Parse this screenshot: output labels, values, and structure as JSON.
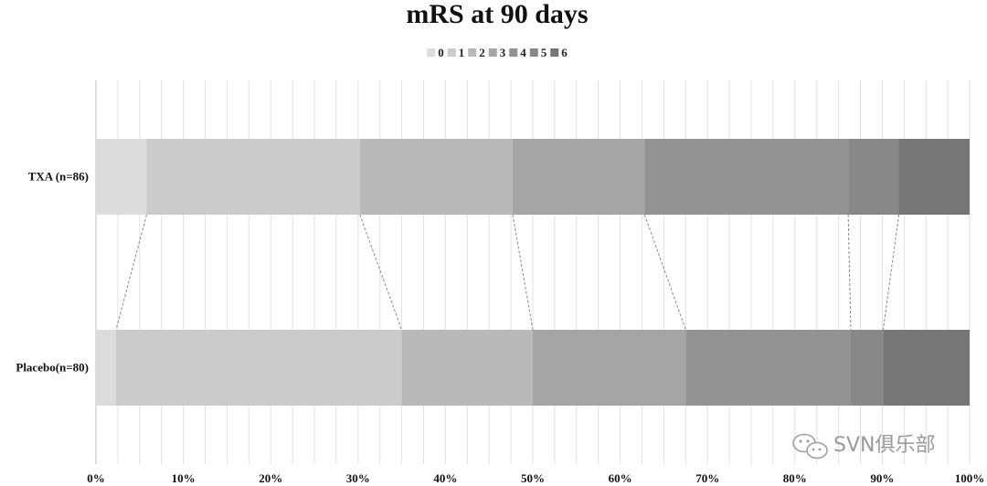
{
  "chart_data": {
    "type": "bar",
    "orientation": "horizontal",
    "stacked": "100%",
    "title": "mRS at 90 days",
    "categories": [
      "TXA (n=86)",
      "Placebo(n=80)"
    ],
    "series": [
      {
        "name": "0",
        "values": [
          5.8,
          2.3
        ]
      },
      {
        "name": "1",
        "values": [
          24.4,
          32.7
        ]
      },
      {
        "name": "2",
        "values": [
          17.5,
          15.0
        ]
      },
      {
        "name": "3",
        "values": [
          15.1,
          17.5
        ]
      },
      {
        "name": "4",
        "values": [
          23.3,
          18.9
        ]
      },
      {
        "name": "5",
        "values": [
          5.8,
          3.7
        ]
      },
      {
        "name": "6",
        "values": [
          8.1,
          9.9
        ]
      }
    ],
    "colors": [
      "#dcdcdc",
      "#cbcbcb",
      "#b9b9b9",
      "#a5a5a5",
      "#939393",
      "#888888",
      "#767676"
    ],
    "xlim": [
      0,
      100
    ],
    "x_ticks": [
      "0%",
      "10%",
      "20%",
      "30%",
      "40%",
      "50%",
      "60%",
      "70%",
      "80%",
      "90%",
      "100%"
    ],
    "minor_grid_step": 2.5,
    "grid": true,
    "legend_position": "top-center",
    "connector_lines": true
  },
  "watermark": {
    "text": "SVN俱乐部",
    "icon": "wechat-icon"
  }
}
